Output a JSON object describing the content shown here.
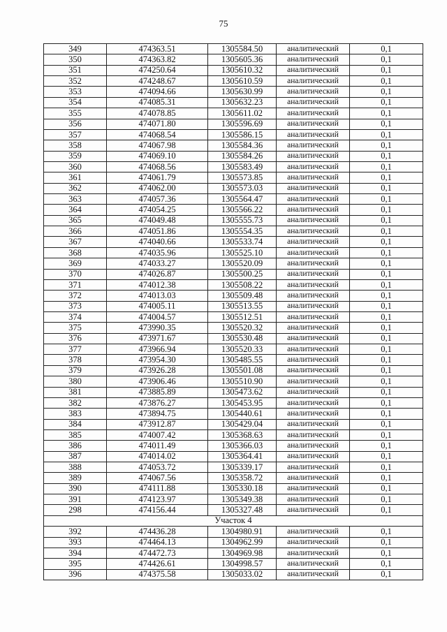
{
  "page_number": "75",
  "rows": [
    [
      "349",
      "474363.51",
      "1305584.50",
      "аналитический",
      "0,1"
    ],
    [
      "350",
      "474363.82",
      "1305605.36",
      "аналитический",
      "0,1"
    ],
    [
      "351",
      "474250.64",
      "1305610.32",
      "аналитический",
      "0,1"
    ],
    [
      "352",
      "474248.67",
      "1305610.59",
      "аналитический",
      "0,1"
    ],
    [
      "353",
      "474094.66",
      "1305630.99",
      "аналитический",
      "0,1"
    ],
    [
      "354",
      "474085.31",
      "1305632.23",
      "аналитический",
      "0,1"
    ],
    [
      "355",
      "474078.85",
      "1305611.02",
      "аналитический",
      "0,1"
    ],
    [
      "356",
      "474071.80",
      "1305596.69",
      "аналитический",
      "0,1"
    ],
    [
      "357",
      "474068.54",
      "1305586.15",
      "аналитический",
      "0,1"
    ],
    [
      "358",
      "474067.98",
      "1305584.36",
      "аналитический",
      "0,1"
    ],
    [
      "359",
      "474069.10",
      "1305584.26",
      "аналитический",
      "0,1"
    ],
    [
      "360",
      "474068.56",
      "1305583.49",
      "аналитический",
      "0,1"
    ],
    [
      "361",
      "474061.79",
      "1305573.85",
      "аналитический",
      "0,1"
    ],
    [
      "362",
      "474062.00",
      "1305573.03",
      "аналитический",
      "0,1"
    ],
    [
      "363",
      "474057.36",
      "1305564.47",
      "аналитический",
      "0,1"
    ],
    [
      "364",
      "474054.25",
      "1305566.22",
      "аналитический",
      "0,1"
    ],
    [
      "365",
      "474049.48",
      "1305555.73",
      "аналитический",
      "0,1"
    ],
    [
      "366",
      "474051.86",
      "1305554.35",
      "аналитический",
      "0,1"
    ],
    [
      "367",
      "474040.66",
      "1305533.74",
      "аналитический",
      "0,1"
    ],
    [
      "368",
      "474035.96",
      "1305525.10",
      "аналитический",
      "0,1"
    ],
    [
      "369",
      "474033.27",
      "1305520.09",
      "аналитический",
      "0,1"
    ],
    [
      "370",
      "474026.87",
      "1305500.25",
      "аналитический",
      "0,1"
    ],
    [
      "371",
      "474012.38",
      "1305508.22",
      "аналитический",
      "0,1"
    ],
    [
      "372",
      "474013.03",
      "1305509.48",
      "аналитический",
      "0,1"
    ],
    [
      "373",
      "474005.11",
      "1305513.55",
      "аналитический",
      "0,1"
    ],
    [
      "374",
      "474004.57",
      "1305512.51",
      "аналитический",
      "0,1"
    ],
    [
      "375",
      "473990.35",
      "1305520.32",
      "аналитический",
      "0,1"
    ],
    [
      "376",
      "473971.67",
      "1305530.48",
      "аналитический",
      "0,1"
    ],
    [
      "377",
      "473966.94",
      "1305520.33",
      "аналитический",
      "0,1"
    ],
    [
      "378",
      "473954.30",
      "1305485.55",
      "аналитический",
      "0,1"
    ],
    [
      "379",
      "473926.28",
      "1305501.08",
      "аналитический",
      "0,1"
    ],
    [
      "380",
      "473906.46",
      "1305510.90",
      "аналитический",
      "0,1"
    ],
    [
      "381",
      "473885.89",
      "1305473.62",
      "аналитический",
      "0,1"
    ],
    [
      "382",
      "473876.27",
      "1305453.95",
      "аналитический",
      "0,1"
    ],
    [
      "383",
      "473894.75",
      "1305440.61",
      "аналитический",
      "0,1"
    ],
    [
      "384",
      "473912.87",
      "1305429.04",
      "аналитический",
      "0,1"
    ],
    [
      "385",
      "474007.42",
      "1305368.63",
      "аналитический",
      "0,1"
    ],
    [
      "386",
      "474011.49",
      "1305366.03",
      "аналитический",
      "0,1"
    ],
    [
      "387",
      "474014.02",
      "1305364.41",
      "аналитический",
      "0,1"
    ],
    [
      "388",
      "474053.72",
      "1305339.17",
      "аналитический",
      "0,1"
    ],
    [
      "389",
      "474067.56",
      "1305358.72",
      "аналитический",
      "0,1"
    ],
    [
      "390",
      "474111.88",
      "1305330.18",
      "аналитический",
      "0,1"
    ],
    [
      "391",
      "474123.97",
      "1305349.38",
      "аналитический",
      "0,1"
    ],
    [
      "298",
      "474156.44",
      "1305327.48",
      "аналитический",
      "0,1"
    ]
  ],
  "section_label": "Участок 4",
  "rows2": [
    [
      "392",
      "474436.28",
      "1304980.91",
      "аналитический",
      "0,1"
    ],
    [
      "393",
      "474464.13",
      "1304962.99",
      "аналитический",
      "0,1"
    ],
    [
      "394",
      "474472.73",
      "1304969.98",
      "аналитический",
      "0,1"
    ],
    [
      "395",
      "474426.61",
      "1304998.57",
      "аналитический",
      "0,1"
    ],
    [
      "396",
      "474375.58",
      "1305033.02",
      "аналитический",
      "0,1"
    ]
  ]
}
